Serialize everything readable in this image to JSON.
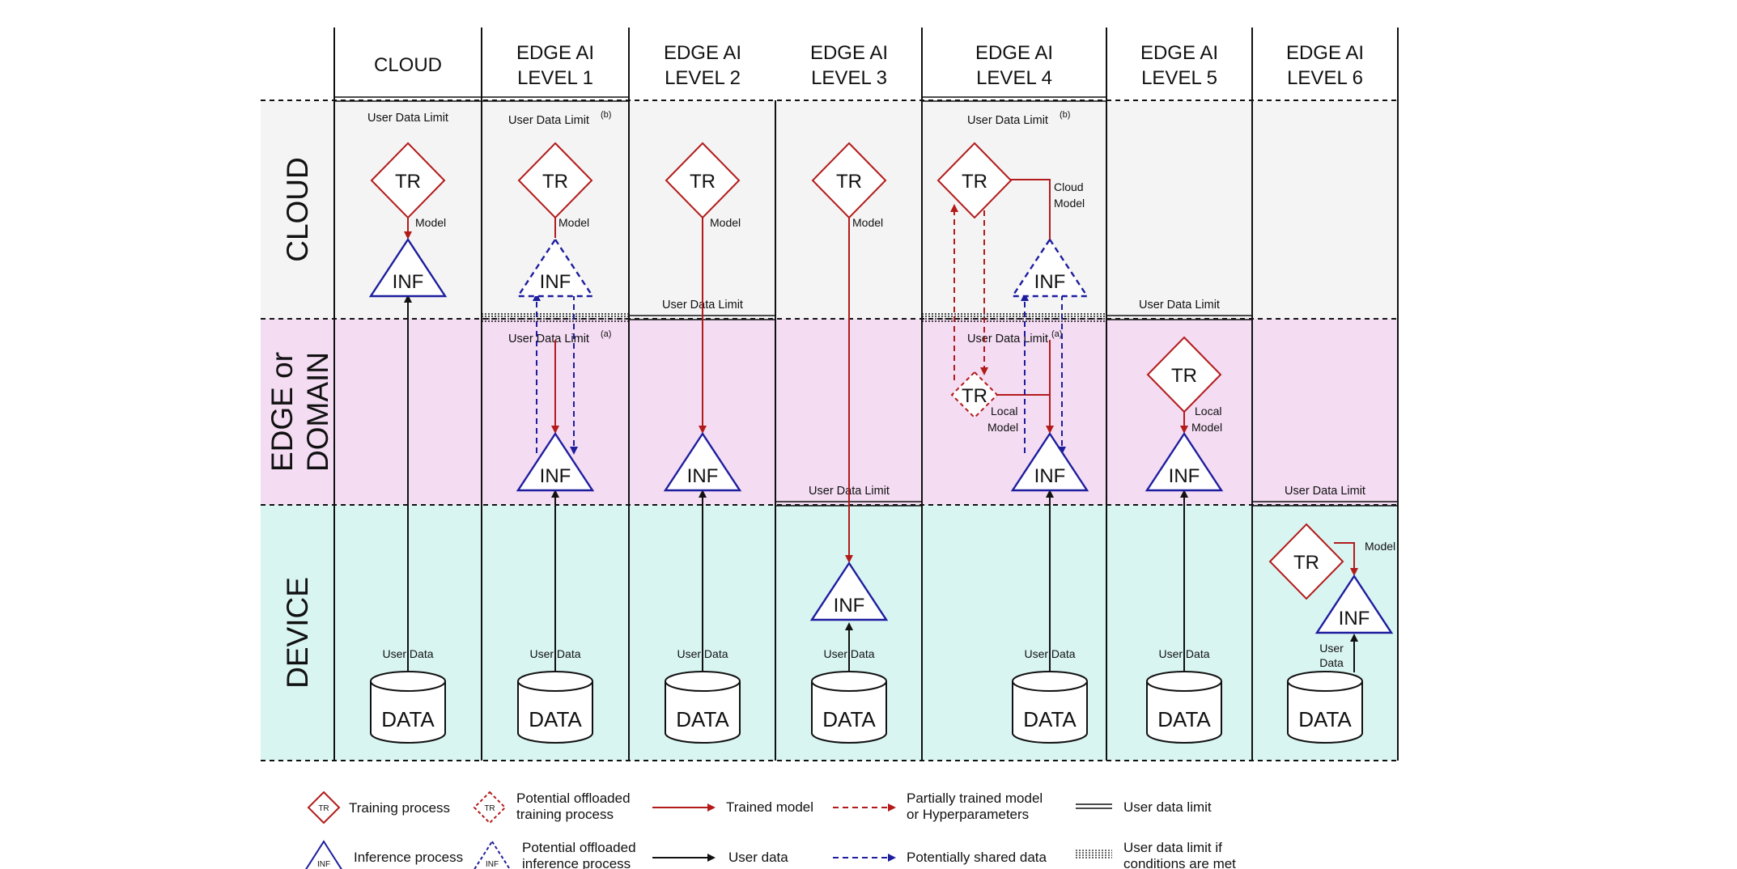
{
  "columns": {
    "cloud": [
      "CLOUD"
    ],
    "l1": [
      "EDGE AI",
      "LEVEL 1"
    ],
    "l2": [
      "EDGE AI",
      "LEVEL 2"
    ],
    "l3": [
      "EDGE AI",
      "LEVEL 3"
    ],
    "l4": [
      "EDGE AI",
      "LEVEL 4"
    ],
    "l5": [
      "EDGE AI",
      "LEVEL 5"
    ],
    "l6": [
      "EDGE AI",
      "LEVEL 6"
    ]
  },
  "rows": {
    "cloud": [
      "CLOUD"
    ],
    "edge": [
      "EDGE or",
      "DOMAIN"
    ],
    "device": [
      "DEVICE"
    ]
  },
  "labels": {
    "user_data_limit": "User Data Limit",
    "sup_a": "(a)",
    "sup_b": "(b)",
    "model": "Model",
    "cloud_model": [
      "Cloud",
      "Model"
    ],
    "local_model": [
      "Local",
      "Model"
    ],
    "user_data": "User Data",
    "user_data_stacked": [
      "User",
      "Data"
    ],
    "tr": "TR",
    "inf": "INF",
    "data": "DATA"
  },
  "legend": {
    "training_process": "Training process",
    "potential_offloaded_training": [
      "Potential offloaded",
      "training process"
    ],
    "trained_model": "Trained model",
    "partially_trained": [
      "Partially trained model",
      "or Hyperparameters"
    ],
    "user_data_limit": "User data limit",
    "inference_process": "Inference process",
    "potential_offloaded_inference": [
      "Potential offloaded",
      "inference process"
    ],
    "user_data": "User data",
    "potentially_shared": "Potentially shared data",
    "user_data_limit_if": [
      "User data limit if",
      "conditions are met"
    ]
  },
  "colors": {
    "training": "#b31b1b",
    "inference": "#1d1d9e",
    "user_data": "#111111",
    "band_cloud": "#f4f4f4",
    "band_edge": "#f4dcf3",
    "band_device": "#d9f5f2"
  }
}
